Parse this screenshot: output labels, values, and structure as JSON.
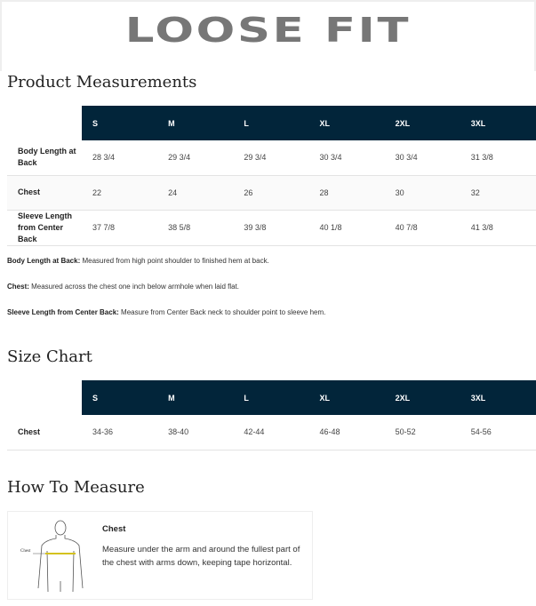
{
  "banner": {
    "title": "LOOSE FIT"
  },
  "product_measurements": {
    "heading": "Product Measurements",
    "sizes": [
      "S",
      "M",
      "L",
      "XL",
      "2XL",
      "3XL"
    ],
    "rows": [
      {
        "label": "Body Length at Back",
        "values": [
          "28 3/4",
          "29 3/4",
          "29 3/4",
          "30 3/4",
          "30 3/4",
          "31 3/8"
        ]
      },
      {
        "label": "Chest",
        "values": [
          "22",
          "24",
          "26",
          "28",
          "30",
          "32"
        ]
      },
      {
        "label": "Sleeve Length from Center Back",
        "values": [
          "37 7/8",
          "38 5/8",
          "39 3/8",
          "40 1/8",
          "40 7/8",
          "41 3/8"
        ]
      }
    ],
    "notes": [
      {
        "term": "Body Length at Back:",
        "text": " Measured from high point shoulder to finished hem at back."
      },
      {
        "term": "Chest:",
        "text": " Measured across the chest one inch below armhole when laid flat."
      },
      {
        "term": "Sleeve Length from Center Back:",
        "text": " Measure from Center Back neck to shoulder point to sleeve hem."
      }
    ]
  },
  "size_chart": {
    "heading": "Size Chart",
    "sizes": [
      "S",
      "M",
      "L",
      "XL",
      "2XL",
      "3XL"
    ],
    "rows": [
      {
        "label": "Chest",
        "values": [
          "34-36",
          "38-40",
          "42-44",
          "46-48",
          "50-52",
          "54-56"
        ]
      }
    ]
  },
  "how_to_measure": {
    "heading": "How To Measure",
    "figure_label": "Chest",
    "title": "Chest",
    "text": "Measure under the arm and around the fullest part of the chest with arms down, keeping tape horizontal.",
    "tape_color": "#d4c21e"
  },
  "colors": {
    "header_bg": "#02253a"
  }
}
